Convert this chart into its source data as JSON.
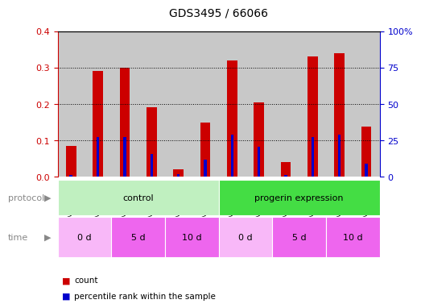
{
  "title": "GDS3495 / 66066",
  "samples": [
    "GSM255774",
    "GSM255806",
    "GSM255807",
    "GSM255808",
    "GSM255809",
    "GSM255828",
    "GSM255829",
    "GSM255830",
    "GSM255831",
    "GSM255832",
    "GSM255833",
    "GSM255834"
  ],
  "red_values": [
    0.085,
    0.29,
    0.3,
    0.19,
    0.02,
    0.148,
    0.32,
    0.205,
    0.04,
    0.33,
    0.34,
    0.137
  ],
  "blue_values": [
    0.005,
    0.108,
    0.109,
    0.062,
    0.008,
    0.046,
    0.116,
    0.083,
    0.005,
    0.108,
    0.115,
    0.035
  ],
  "ylim_left": [
    0,
    0.4
  ],
  "ylim_right": [
    0,
    100
  ],
  "yticks_left": [
    0.0,
    0.1,
    0.2,
    0.3,
    0.4
  ],
  "yticks_right": [
    0,
    25,
    50,
    75,
    100
  ],
  "ytick_labels_right": [
    "0",
    "25",
    "50",
    "75",
    "100%"
  ],
  "red_color": "#cc0000",
  "blue_color": "#0000cc",
  "bar_bg_color": "#c8c8c8",
  "protocol_groups": [
    {
      "label": "control",
      "start": 0,
      "end": 6,
      "color": "#c0f0c0"
    },
    {
      "label": "progerin expression",
      "start": 6,
      "end": 12,
      "color": "#44dd44"
    }
  ],
  "time_groups": [
    {
      "label": "0 d",
      "start": 0,
      "end": 2,
      "color": "#f8b8f8"
    },
    {
      "label": "5 d",
      "start": 2,
      "end": 4,
      "color": "#ee66ee"
    },
    {
      "label": "10 d",
      "start": 4,
      "end": 6,
      "color": "#ee66ee"
    },
    {
      "label": "0 d",
      "start": 6,
      "end": 8,
      "color": "#f8b8f8"
    },
    {
      "label": "5 d",
      "start": 8,
      "end": 10,
      "color": "#ee66ee"
    },
    {
      "label": "10 d",
      "start": 10,
      "end": 12,
      "color": "#ee66ee"
    }
  ],
  "bg_color": "#ffffff",
  "legend_items": [
    {
      "label": "count",
      "color": "#cc0000"
    },
    {
      "label": "percentile rank within the sample",
      "color": "#0000cc"
    }
  ]
}
